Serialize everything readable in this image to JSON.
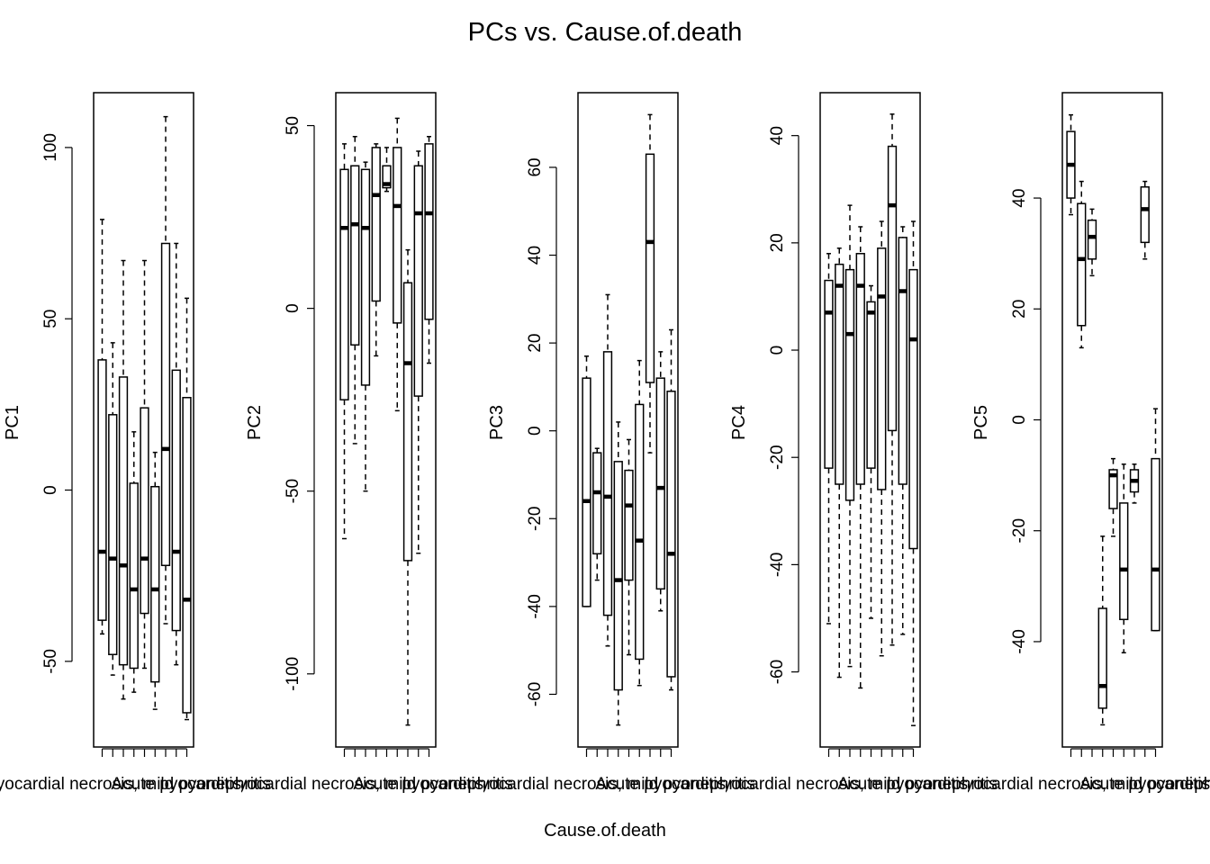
{
  "title": "PCs vs. Cause.of.death",
  "xlabel": "Cause.of.death",
  "colors": {
    "ink": "#000000",
    "box_fill": "#ffffff"
  },
  "chart_data": [
    {
      "type": "box",
      "ylabel": "PC1",
      "ylim": [
        -75,
        116
      ],
      "yticks": [
        -50,
        0,
        50,
        100
      ],
      "xtick_labels": [
        "Acute myocardial necrosis, mild pyonephritis",
        "Acute pyocarditis"
      ],
      "boxes": [
        {
          "min": -42,
          "q1": -38,
          "median": -18,
          "q3": 38,
          "max": 79
        },
        {
          "min": -54,
          "q1": -48,
          "median": -20,
          "q3": 22,
          "max": 43
        },
        {
          "min": -61,
          "q1": -51,
          "median": -22,
          "q3": 33,
          "max": 67
        },
        {
          "min": -59,
          "q1": -52,
          "median": -29,
          "q3": 2,
          "max": 17
        },
        {
          "min": -52,
          "q1": -36,
          "median": -20,
          "q3": 24,
          "max": 67
        },
        {
          "min": -64,
          "q1": -56,
          "median": -29,
          "q3": 1,
          "max": 11
        },
        {
          "min": -39,
          "q1": -22,
          "median": 12,
          "q3": 72,
          "max": 109
        },
        {
          "min": -51,
          "q1": -41,
          "median": -18,
          "q3": 35,
          "max": 72
        },
        {
          "min": -67,
          "q1": -65,
          "median": -32,
          "q3": 27,
          "max": 56
        }
      ]
    },
    {
      "type": "box",
      "ylabel": "PC2",
      "ylim": [
        -120,
        59
      ],
      "yticks": [
        -100,
        -50,
        0,
        50
      ],
      "xtick_labels": [
        "Acute myocardial necrosis, mild pyonephritis",
        "Acute pyocarditis"
      ],
      "boxes": [
        {
          "min": -63,
          "q1": -25,
          "median": 22,
          "q3": 38,
          "max": 45
        },
        {
          "min": -37,
          "q1": -10,
          "median": 23,
          "q3": 39,
          "max": 47
        },
        {
          "min": -50,
          "q1": -21,
          "median": 22,
          "q3": 38,
          "max": 40
        },
        {
          "min": -13,
          "q1": 2,
          "median": 31,
          "q3": 44,
          "max": 45
        },
        {
          "min": 32,
          "q1": 33,
          "median": 34,
          "q3": 39,
          "max": 44
        },
        {
          "min": -28,
          "q1": -4,
          "median": 28,
          "q3": 44,
          "max": 52
        },
        {
          "min": -114,
          "q1": -69,
          "median": -15,
          "q3": 7,
          "max": 16
        },
        {
          "min": -67,
          "q1": -24,
          "median": 26,
          "q3": 39,
          "max": 43
        },
        {
          "min": -15,
          "q1": -3,
          "median": 26,
          "q3": 45,
          "max": 47
        }
      ]
    },
    {
      "type": "box",
      "ylabel": "PC3",
      "ylim": [
        -72,
        77
      ],
      "yticks": [
        -60,
        -40,
        -20,
        0,
        20,
        40,
        60
      ],
      "xtick_labels": [
        "Acute myocardial necrosis, mild pyonephritis",
        "Acute pyocarditis"
      ],
      "boxes": [
        {
          "min": -40,
          "q1": -40,
          "median": -16,
          "q3": 12,
          "max": 17
        },
        {
          "min": -34,
          "q1": -28,
          "median": -14,
          "q3": -5,
          "max": -4
        },
        {
          "min": -49,
          "q1": -42,
          "median": -15,
          "q3": 18,
          "max": 31
        },
        {
          "min": -67,
          "q1": -59,
          "median": -34,
          "q3": -7,
          "max": 2
        },
        {
          "min": -51,
          "q1": -34,
          "median": -17,
          "q3": -9,
          "max": -2
        },
        {
          "min": -58,
          "q1": -52,
          "median": -25,
          "q3": 6,
          "max": 16
        },
        {
          "min": -5,
          "q1": 11,
          "median": 43,
          "q3": 63,
          "max": 72
        },
        {
          "min": -41,
          "q1": -36,
          "median": -13,
          "q3": 12,
          "max": 18
        },
        {
          "min": -59,
          "q1": -56,
          "median": -28,
          "q3": 9,
          "max": 23
        }
      ]
    },
    {
      "type": "box",
      "ylabel": "PC4",
      "ylim": [
        -74,
        48
      ],
      "yticks": [
        -60,
        -40,
        -20,
        0,
        20,
        40
      ],
      "xtick_labels": [
        "Acute myocardial necrosis, mild pyonephritis",
        "Acute pyocarditis"
      ],
      "boxes": [
        {
          "min": -51,
          "q1": -22,
          "median": 7,
          "q3": 13,
          "max": 18
        },
        {
          "min": -61,
          "q1": -25,
          "median": 12,
          "q3": 16,
          "max": 19
        },
        {
          "min": -59,
          "q1": -28,
          "median": 3,
          "q3": 15,
          "max": 27
        },
        {
          "min": -63,
          "q1": -25,
          "median": 12,
          "q3": 18,
          "max": 23
        },
        {
          "min": -50,
          "q1": -22,
          "median": 7,
          "q3": 9,
          "max": 12
        },
        {
          "min": -57,
          "q1": -26,
          "median": 10,
          "q3": 19,
          "max": 24
        },
        {
          "min": -55,
          "q1": -15,
          "median": 27,
          "q3": 38,
          "max": 44
        },
        {
          "min": -53,
          "q1": -25,
          "median": 11,
          "q3": 21,
          "max": 23
        },
        {
          "min": -70,
          "q1": -37,
          "median": 2,
          "q3": 15,
          "max": 24
        }
      ]
    },
    {
      "type": "box",
      "ylabel": "PC5",
      "ylim": [
        -59,
        59
      ],
      "yticks": [
        -40,
        -20,
        0,
        20,
        40
      ],
      "xtick_labels": [
        "Acute myocardial necrosis, mild pyonephritis",
        "Acute pyocarditis"
      ],
      "boxes": [
        {
          "min": 37,
          "q1": 40,
          "median": 46,
          "q3": 52,
          "max": 55
        },
        {
          "min": 13,
          "q1": 17,
          "median": 29,
          "q3": 39,
          "max": 43
        },
        {
          "min": 26,
          "q1": 29,
          "median": 33,
          "q3": 36,
          "max": 38
        },
        {
          "min": -55,
          "q1": -52,
          "median": -48,
          "q3": -34,
          "max": -21
        },
        {
          "min": -21,
          "q1": -16,
          "median": -10,
          "q3": -9,
          "max": -7
        },
        {
          "min": -42,
          "q1": -36,
          "median": -27,
          "q3": -15,
          "max": -8
        },
        {
          "min": -15,
          "q1": -13,
          "median": -11,
          "q3": -9,
          "max": -8
        },
        {
          "min": 29,
          "q1": 32,
          "median": 38,
          "q3": 42,
          "max": 43
        },
        {
          "min": -38,
          "q1": -38,
          "median": -27,
          "q3": -7,
          "max": 2
        }
      ]
    }
  ]
}
